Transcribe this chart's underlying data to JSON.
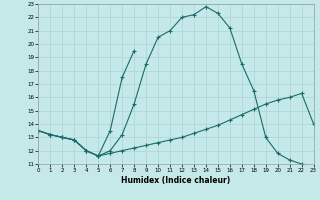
{
  "xlabel": "Humidex (Indice chaleur)",
  "xlim": [
    0,
    23
  ],
  "ylim": [
    11,
    23
  ],
  "xticks": [
    0,
    1,
    2,
    3,
    4,
    5,
    6,
    7,
    8,
    9,
    10,
    11,
    12,
    13,
    14,
    15,
    16,
    17,
    18,
    19,
    20,
    21,
    22,
    23
  ],
  "yticks": [
    11,
    12,
    13,
    14,
    15,
    16,
    17,
    18,
    19,
    20,
    21,
    22,
    23
  ],
  "bg_color": "#c5e8e8",
  "grid_color": "#aad4d4",
  "line_color": "#1a6b6b",
  "curve_arc": {
    "x": [
      0,
      1,
      2,
      3,
      4,
      5,
      6,
      7,
      8,
      9,
      10,
      11,
      12,
      13,
      14,
      15,
      16,
      17,
      18,
      19,
      20,
      21,
      22
    ],
    "y": [
      13.5,
      13.2,
      13.0,
      12.8,
      12.0,
      11.6,
      12.0,
      13.2,
      15.5,
      18.5,
      20.5,
      21.0,
      22.0,
      22.2,
      22.8,
      22.3,
      21.2,
      18.5,
      16.5,
      13.0,
      11.8,
      11.3,
      11.0
    ]
  },
  "curve_steep": {
    "x": [
      0,
      1,
      2,
      3,
      4,
      5,
      6,
      7,
      8
    ],
    "y": [
      13.5,
      13.2,
      13.0,
      12.8,
      12.0,
      11.6,
      13.5,
      17.5,
      19.5
    ]
  },
  "curve_bottom": {
    "x": [
      0,
      1,
      2,
      3,
      4,
      5,
      6,
      7,
      8,
      9,
      10,
      11,
      12,
      13,
      14,
      15,
      16,
      17,
      18,
      19,
      20,
      21,
      22,
      23
    ],
    "y": [
      13.5,
      13.2,
      13.0,
      12.8,
      12.0,
      11.6,
      11.8,
      12.0,
      12.2,
      12.4,
      12.6,
      12.8,
      13.0,
      13.3,
      13.6,
      13.9,
      14.3,
      14.7,
      15.1,
      15.5,
      15.8,
      16.0,
      16.3,
      14.0
    ]
  }
}
